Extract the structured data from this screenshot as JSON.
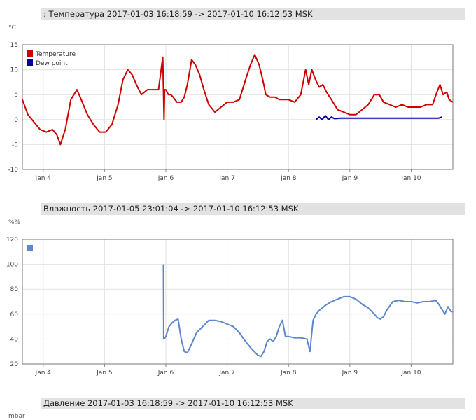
{
  "panels": [
    {
      "title": ": Температура 2017-01-03 16:18:59 -> 2017-01-10 16:12:53 MSK",
      "unit": "°C"
    },
    {
      "title": "Влажность 2017-01-05 23:01:04 -> 2017-01-10 16:12:53 MSK",
      "unit": "%%"
    },
    {
      "title": "Давление 2017-01-03 16:18:59 -> 2017-01-10 16:12:53 MSK",
      "unit": "mbar"
    }
  ],
  "colors": {
    "temperature": "#cc0000",
    "dew_point": "#0000aa",
    "humidity": "#5b88cc",
    "grid": "#e2e2e2"
  },
  "chart_data": [
    {
      "type": "line",
      "title": ": Температура 2017-01-03 16:18:59 -> 2017-01-10 16:12:53 MSK",
      "ylabel": "°C",
      "xlim": [
        3.66,
        10.68
      ],
      "ylim": [
        -10,
        15
      ],
      "yticks": [
        -10,
        -5,
        0,
        5,
        10,
        15
      ],
      "xticks": [
        {
          "x": 4,
          "label": "Jan 4"
        },
        {
          "x": 5,
          "label": "Jan 5"
        },
        {
          "x": 6,
          "label": "Jan 6"
        },
        {
          "x": 7,
          "label": "Jan 7"
        },
        {
          "x": 8,
          "label": "Jan 8"
        },
        {
          "x": 9,
          "label": "Jan 9"
        },
        {
          "x": 10,
          "label": "Jan 10"
        }
      ],
      "grid": true,
      "legend": "top-left",
      "series": [
        {
          "name": "Temperature",
          "color": "#cc0000",
          "x": [
            3.66,
            3.75,
            3.85,
            3.95,
            4.05,
            4.15,
            4.22,
            4.28,
            4.36,
            4.45,
            4.55,
            4.62,
            4.72,
            4.82,
            4.92,
            5.02,
            5.12,
            5.22,
            5.3,
            5.38,
            5.45,
            5.52,
            5.6,
            5.7,
            5.8,
            5.88,
            5.95,
            5.97,
            5.98,
            6.0,
            6.04,
            6.08,
            6.12,
            6.18,
            6.25,
            6.3,
            6.35,
            6.42,
            6.48,
            6.55,
            6.62,
            6.7,
            6.8,
            6.9,
            7.0,
            7.1,
            7.2,
            7.3,
            7.38,
            7.45,
            7.52,
            7.58,
            7.63,
            7.7,
            7.78,
            7.85,
            7.92,
            8.0,
            8.1,
            8.2,
            8.28,
            8.33,
            8.38,
            8.44,
            8.5,
            8.56,
            8.62,
            8.7,
            8.8,
            8.9,
            9.0,
            9.1,
            9.2,
            9.3,
            9.4,
            9.48,
            9.55,
            9.65,
            9.75,
            9.85,
            9.95,
            10.05,
            10.15,
            10.25,
            10.35,
            10.42,
            10.47,
            10.52,
            10.58,
            10.62,
            10.68
          ],
          "y": [
            4,
            1,
            -0.5,
            -2,
            -2.5,
            -2,
            -3,
            -5,
            -2,
            4,
            6,
            4,
            1,
            -1,
            -2.5,
            -2.5,
            -1,
            3,
            8,
            10,
            9,
            7,
            5,
            6,
            6,
            6,
            12.5,
            0,
            6,
            6,
            5,
            5,
            4.5,
            3.5,
            3.5,
            4.5,
            7,
            12,
            11,
            9,
            6,
            3,
            1.5,
            2.5,
            3.5,
            3.5,
            4,
            8,
            11,
            13,
            11,
            8,
            5,
            4.5,
            4.5,
            4,
            4,
            4,
            3.5,
            5,
            10,
            7,
            10,
            8,
            6.5,
            7,
            5.5,
            4,
            2,
            1.5,
            1,
            1,
            2,
            3,
            5,
            5,
            3.5,
            3,
            2.5,
            3,
            2.5,
            2.5,
            2.5,
            3,
            3,
            5.5,
            7,
            5,
            5.5,
            4,
            3.5
          ]
        },
        {
          "name": "Dew point",
          "color": "#0000aa",
          "x": [
            8.45,
            8.5,
            8.55,
            8.6,
            8.65,
            8.7,
            8.75,
            8.85,
            9.0,
            9.2,
            9.5,
            9.8,
            10.1,
            10.3,
            10.45,
            10.5
          ],
          "y": [
            0,
            0.5,
            0,
            0.8,
            0,
            0.5,
            0.2,
            0.3,
            0.3,
            0.3,
            0.3,
            0.3,
            0.3,
            0.3,
            0.3,
            0.5
          ]
        }
      ]
    },
    {
      "type": "line",
      "title": "Влажность 2017-01-05 23:01:04 -> 2017-01-10 16:12:53 MSK",
      "ylabel": "%%",
      "xlim": [
        3.66,
        10.68
      ],
      "ylim": [
        20,
        120
      ],
      "yticks": [
        20,
        40,
        60,
        80,
        100,
        120
      ],
      "xticks": [
        {
          "x": 4,
          "label": "Jan 4"
        },
        {
          "x": 5,
          "label": "Jan 5"
        },
        {
          "x": 6,
          "label": "Jan 6"
        },
        {
          "x": 7,
          "label": "Jan 7"
        },
        {
          "x": 8,
          "label": "Jan 8"
        },
        {
          "x": 9,
          "label": "Jan 9"
        },
        {
          "x": 10,
          "label": "Jan 10"
        }
      ],
      "grid": true,
      "legend": "top-left",
      "series": [
        {
          "name": "",
          "color": "#5b88cc",
          "x": [
            5.96,
            5.965,
            5.97,
            6.0,
            6.05,
            6.1,
            6.15,
            6.2,
            6.25,
            6.3,
            6.35,
            6.42,
            6.5,
            6.6,
            6.7,
            6.8,
            6.9,
            7.0,
            7.1,
            7.2,
            7.3,
            7.4,
            7.5,
            7.55,
            7.6,
            7.65,
            7.7,
            7.75,
            7.8,
            7.85,
            7.9,
            7.95,
            8.0,
            8.1,
            8.2,
            8.3,
            8.35,
            8.4,
            8.45,
            8.5,
            8.6,
            8.7,
            8.8,
            8.9,
            9.0,
            9.1,
            9.2,
            9.3,
            9.4,
            9.45,
            9.5,
            9.55,
            9.6,
            9.7,
            9.8,
            9.9,
            10.0,
            10.1,
            10.2,
            10.3,
            10.4,
            10.45,
            10.5,
            10.55,
            10.6,
            10.65,
            10.68
          ],
          "y": [
            100,
            40,
            40,
            42,
            50,
            53,
            55,
            56,
            40,
            30,
            29,
            36,
            45,
            50,
            55,
            55,
            54,
            52,
            50,
            45,
            38,
            32,
            27,
            26,
            30,
            38,
            40,
            38,
            42,
            50,
            55,
            42,
            42,
            41,
            41,
            40,
            30,
            55,
            60,
            63,
            67,
            70,
            72,
            74,
            74,
            72,
            68,
            65,
            60,
            57,
            56,
            58,
            63,
            70,
            71,
            70,
            70,
            69,
            70,
            70,
            71,
            68,
            64,
            60,
            66,
            62,
            62
          ]
        }
      ]
    }
  ]
}
